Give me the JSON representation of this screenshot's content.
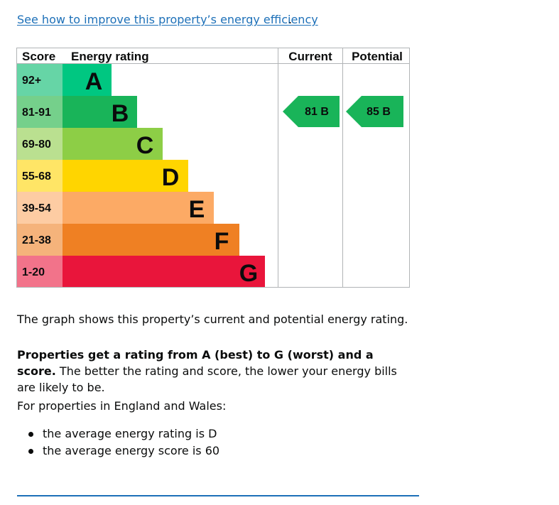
{
  "link": {
    "text": "See how to improve this property’s energy efficiency",
    "trailing": "."
  },
  "epc": {
    "headers": {
      "score": "Score",
      "rating": "Energy rating",
      "current": "Current",
      "potential": "Potential"
    },
    "bands": [
      {
        "score": "92+",
        "letter": "A",
        "color": "#00c781",
        "score_bg": "#66d5a6"
      },
      {
        "score": "81-91",
        "letter": "B",
        "color": "#19b459",
        "score_bg": "#75d08b"
      },
      {
        "score": "69-80",
        "letter": "C",
        "color": "#8dce46",
        "score_bg": "#bae090"
      },
      {
        "score": "55-68",
        "letter": "D",
        "color": "#ffd500",
        "score_bg": "#ffe566"
      },
      {
        "score": "39-54",
        "letter": "E",
        "color": "#fcaa65",
        "score_bg": "#fdcca3"
      },
      {
        "score": "21-38",
        "letter": "F",
        "color": "#ef8023",
        "score_bg": "#f5b37b"
      },
      {
        "score": "1-20",
        "letter": "G",
        "color": "#e9153b",
        "score_bg": "#f2738a"
      }
    ],
    "current": {
      "text": "81 B",
      "band": "B",
      "value": 81,
      "color": "#19b459"
    },
    "potential": {
      "text": "85 B",
      "band": "B",
      "value": 85,
      "color": "#19b459"
    }
  },
  "text": {
    "graph": "The graph shows this property’s current and potential energy rating.",
    "rating_bold": "Properties get a rating from A (best) to G (worst) and a score.",
    "rating_rest": " The better the rating and score, the lower your energy bills are likely to be.",
    "england": "For properties in England and Wales:",
    "averages": [
      "the average energy rating is D",
      "the average energy score is 60"
    ]
  }
}
